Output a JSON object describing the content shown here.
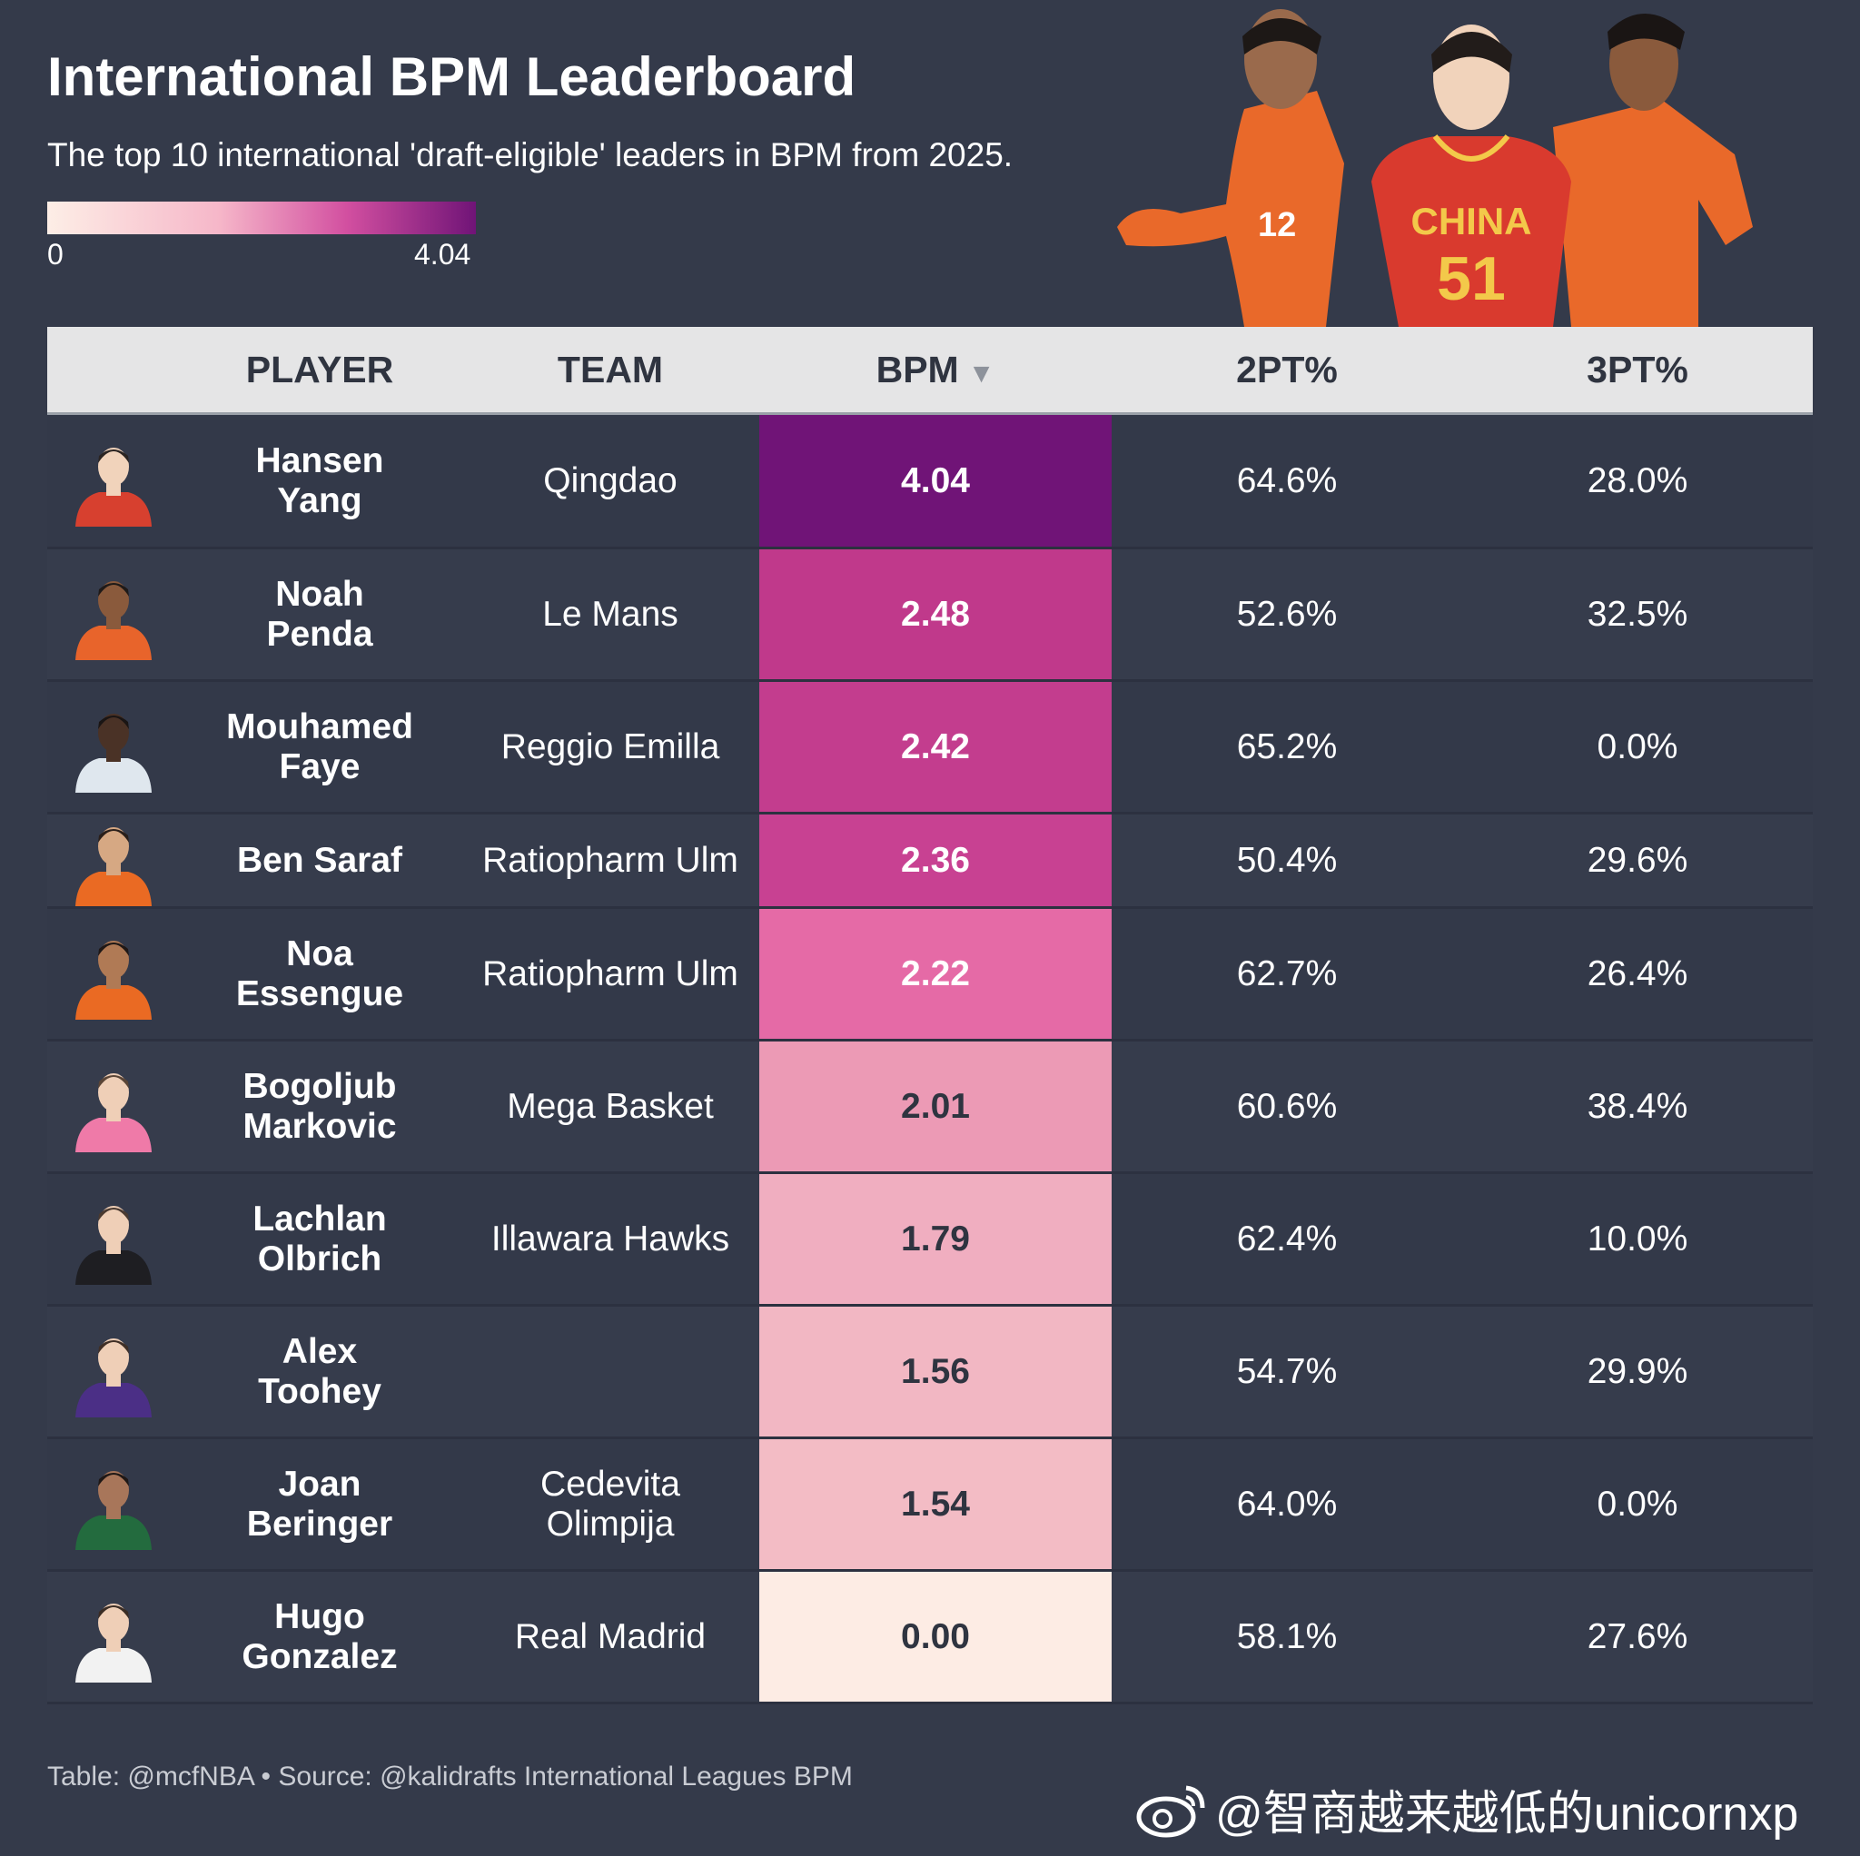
{
  "header": {
    "title": "International BPM Leaderboard",
    "subtitle": "The top 10 international 'draft-eligible' leaders in BPM from 2025."
  },
  "legend": {
    "min_label": "0",
    "max_label": "4.04",
    "colors": [
      "#fdeee6",
      "#f6b7c9",
      "#d24fa0",
      "#701477"
    ]
  },
  "table": {
    "columns": [
      "PLAYER",
      "TEAM",
      "BPM",
      "2PT%",
      "3PT%"
    ],
    "sort_column": "BPM",
    "sort_direction": "descending"
  },
  "chart_data": {
    "type": "table",
    "title": "International BPM Leaderboard",
    "subtitle": "The top 10 international 'draft-eligible' leaders in BPM from 2025.",
    "color_scale": {
      "column": "BPM",
      "min": 0,
      "max": 4.04
    },
    "rows": [
      {
        "player": [
          "Hansen",
          "Yang"
        ],
        "team": [
          "Qingdao"
        ],
        "bpm": "4.04",
        "bpm_value": 4.04,
        "pt2": "64.6%",
        "pt3": "28.0%",
        "bpm_color": "#701477",
        "jersey": "#d7402f",
        "skin": "#f1d3bb",
        "hair": "#2a2422"
      },
      {
        "player": [
          "Noah",
          "Penda"
        ],
        "team": [
          "Le Mans"
        ],
        "bpm": "2.48",
        "bpm_value": 2.48,
        "pt2": "52.6%",
        "pt3": "32.5%",
        "bpm_color": "#c0398b",
        "jersey": "#e8642b",
        "skin": "#8a5a3c",
        "hair": "#1f1a18"
      },
      {
        "player": [
          "Mouhamed",
          "Faye"
        ],
        "team": [
          "Reggio Emilla"
        ],
        "bpm": "2.42",
        "bpm_value": 2.42,
        "pt2": "65.2%",
        "pt3": "0.0%",
        "bpm_color": "#c33d8e",
        "jersey": "#dfe7ee",
        "skin": "#4a3226",
        "hair": "#1a1514"
      },
      {
        "player": [
          "Ben Saraf"
        ],
        "team": [
          "Ratiopharm Ulm"
        ],
        "bpm": "2.36",
        "bpm_value": 2.36,
        "pt2": "50.4%",
        "pt3": "29.6%",
        "bpm_color": "#c84192",
        "jersey": "#ea6a23",
        "skin": "#d6a883",
        "hair": "#2a1f1a"
      },
      {
        "player": [
          "Noa",
          "Essengue"
        ],
        "team": [
          "Ratiopharm Ulm"
        ],
        "bpm": "2.22",
        "bpm_value": 2.22,
        "pt2": "62.7%",
        "pt3": "26.4%",
        "bpm_color": "#e56aa6",
        "jersey": "#ea6a23",
        "skin": "#b07a55",
        "hair": "#1f1816"
      },
      {
        "player": [
          "Bogoljub",
          "Markovic"
        ],
        "team": [
          "Mega Basket"
        ],
        "bpm": "2.01",
        "bpm_value": 2.01,
        "pt2": "60.6%",
        "pt3": "38.4%",
        "bpm_color": "#ec9ab5",
        "jersey": "#ef7aa8",
        "skin": "#efcfb7",
        "hair": "#5a4536"
      },
      {
        "player": [
          "Lachlan",
          "Olbrich"
        ],
        "team": [
          "Illawara Hawks"
        ],
        "bpm": "1.79",
        "bpm_value": 1.79,
        "pt2": "62.4%",
        "pt3": "10.0%",
        "bpm_color": "#f0aec0",
        "jersey": "#1e1e22",
        "skin": "#efcfb7",
        "hair": "#4a3a30"
      },
      {
        "player": [
          "Alex",
          "Toohey"
        ],
        "team": [],
        "bpm": "1.56",
        "bpm_value": 1.56,
        "pt2": "54.7%",
        "pt3": "29.9%",
        "bpm_color": "#f2b7c3",
        "jersey": "#4b2f86",
        "skin": "#efcfb7",
        "hair": "#3f2f26"
      },
      {
        "player": [
          "Joan",
          "Beringer"
        ],
        "team": [
          "Cedevita",
          "Olimpija"
        ],
        "bpm": "1.54",
        "bpm_value": 1.54,
        "pt2": "64.0%",
        "pt3": "0.0%",
        "bpm_color": "#f3bcc5",
        "jersey": "#236b3e",
        "skin": "#a8765a",
        "hair": "#1f1816"
      },
      {
        "player": [
          "Hugo",
          "Gonzalez"
        ],
        "team": [
          "Real Madrid"
        ],
        "bpm": "0.00",
        "bpm_value": 0.0,
        "pt2": "58.1%",
        "pt3": "27.6%",
        "bpm_color": "#fdece4",
        "jersey": "#f2f2f2",
        "skin": "#efcfb7",
        "hair": "#3a2c24"
      }
    ]
  },
  "footer": {
    "credit": "Table: @mcfNBA • Source: @kalidrafts International Leagues BPM"
  },
  "watermark": {
    "text": "@智商越来越低的unicornxp",
    "icon": "weibo-icon"
  },
  "hero_image": {
    "jersey_text": "CHINA",
    "jersey_number": "51",
    "left_number": "12"
  }
}
